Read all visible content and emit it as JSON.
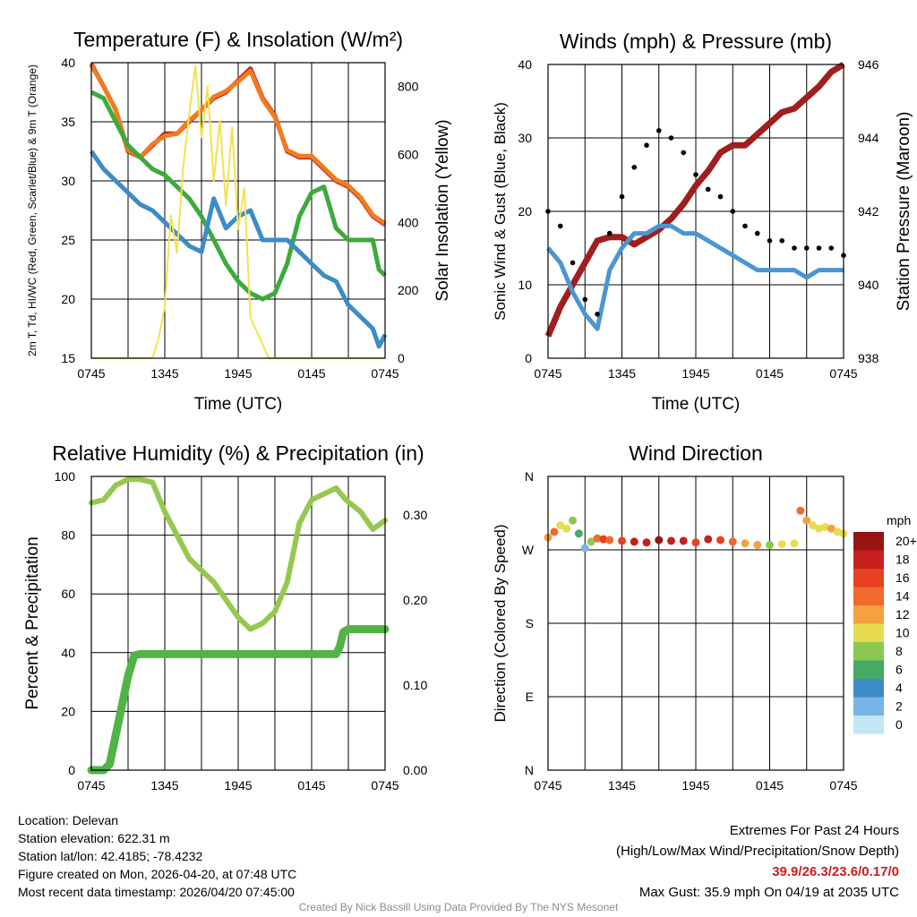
{
  "chart_data": [
    {
      "type": "line",
      "title": "Temperature (F) & Insolation (W/m²)",
      "xlabel": "Time (UTC)",
      "ylabel": "2m T, Td, HI/WC (Red, Green, Scarlet/Blue) & 9m T (Orange)",
      "y2label": "Solar Insolation (Yellow)",
      "x_ticks": [
        "0745",
        "1345",
        "1945",
        "0145",
        "0745"
      ],
      "ylim": [
        15,
        40
      ],
      "y_ticks": [
        15,
        20,
        25,
        30,
        35,
        40
      ],
      "y2lim": [
        0,
        870
      ],
      "y2_ticks": [
        0,
        200,
        400,
        600,
        800
      ],
      "x_hours": [
        0,
        24
      ],
      "series": [
        {
          "name": "2m Temperature",
          "color": "#c81e1e",
          "axis": "left",
          "x": [
            0,
            1,
            2,
            3,
            4,
            5,
            6,
            7,
            8,
            9,
            10,
            11,
            12,
            13,
            14,
            15,
            16,
            17,
            18,
            19,
            20,
            21,
            22,
            23,
            24
          ],
          "values": [
            39.9,
            38,
            36,
            32.5,
            32,
            33,
            34,
            34,
            35,
            36,
            37,
            37.5,
            38.5,
            39.5,
            37,
            35.5,
            32.5,
            32,
            32,
            31,
            30,
            29.5,
            28.5,
            27,
            26.3
          ]
        },
        {
          "name": "9m Temperature",
          "color": "#f07c1e",
          "axis": "left",
          "x": [
            0,
            1,
            2,
            3,
            4,
            5,
            6,
            7,
            8,
            9,
            10,
            11,
            12,
            13,
            14,
            15,
            16,
            17,
            18,
            19,
            20,
            21,
            22,
            23,
            24
          ],
          "values": [
            39.8,
            38,
            36,
            32.6,
            32,
            33.1,
            33.8,
            34,
            35.1,
            36,
            37.1,
            37.6,
            38.4,
            39.3,
            36.9,
            35.4,
            32.6,
            32.1,
            32.1,
            31.1,
            30.1,
            29.6,
            28.6,
            27.1,
            26.4
          ]
        },
        {
          "name": "Dew Point",
          "color": "#3caa3c",
          "axis": "left",
          "x": [
            0,
            1,
            2,
            3,
            4,
            5,
            6,
            7,
            8,
            9,
            10,
            11,
            12,
            13,
            14,
            15,
            16,
            17,
            18,
            19,
            20,
            21,
            22,
            23,
            23.5,
            24
          ],
          "values": [
            37.5,
            37,
            35,
            33,
            32,
            31,
            30.5,
            29.5,
            28.5,
            27,
            25,
            23,
            21.5,
            20.5,
            20,
            20.5,
            23,
            27,
            29,
            29.5,
            26,
            25,
            25,
            25,
            22.5,
            22
          ]
        },
        {
          "name": "Wind Chill",
          "color": "#3c8cc8",
          "axis": "left",
          "x": [
            0,
            1,
            2,
            3,
            4,
            5,
            6,
            7,
            8,
            9,
            10,
            11,
            12,
            13,
            14,
            15,
            16,
            17,
            18,
            19,
            20,
            21,
            22,
            23,
            23.5,
            24
          ],
          "values": [
            32.5,
            31,
            30,
            29,
            28,
            27.5,
            26.5,
            25.5,
            24.5,
            24,
            28.5,
            26,
            27,
            27.5,
            25,
            25,
            25,
            24,
            23,
            22,
            21.5,
            19.5,
            18.5,
            17.5,
            16,
            17
          ]
        },
        {
          "name": "Solar Insolation",
          "color": "#f5e150",
          "axis": "right",
          "x": [
            0,
            5,
            5.5,
            6,
            6.5,
            7,
            7.5,
            8,
            8.5,
            9,
            9.5,
            10,
            10.5,
            11,
            11.5,
            12,
            12.5,
            13,
            14,
            14.5,
            24
          ],
          "values": [
            0,
            0,
            60,
            150,
            420,
            310,
            560,
            720,
            860,
            650,
            800,
            520,
            700,
            450,
            680,
            380,
            500,
            120,
            40,
            0,
            0
          ]
        }
      ]
    },
    {
      "type": "line",
      "title": "Winds (mph) & Pressure (mb)",
      "xlabel": "Time (UTC)",
      "ylabel": "Sonic Wind & Gust (Blue, Black)",
      "y2label": "Station Pressure (Maroon)",
      "x_ticks": [
        "0745",
        "1345",
        "1945",
        "0145",
        "0745"
      ],
      "ylim": [
        0,
        40
      ],
      "y_ticks": [
        0,
        10,
        20,
        30,
        40
      ],
      "y2lim": [
        938,
        946
      ],
      "y2_ticks": [
        938,
        940,
        942,
        944,
        946
      ],
      "x_hours": [
        0,
        24
      ],
      "series": [
        {
          "name": "Station Pressure",
          "color": "#a01e1e",
          "axis": "right",
          "x": [
            0,
            1,
            2,
            3,
            4,
            5,
            6,
            7,
            8,
            9,
            10,
            11,
            12,
            13,
            14,
            15,
            16,
            17,
            18,
            19,
            20,
            21,
            22,
            23,
            24
          ],
          "values": [
            938.6,
            939.4,
            940,
            940.6,
            941.2,
            941.3,
            941.3,
            941.1,
            941.3,
            941.5,
            941.8,
            942.2,
            942.7,
            943.1,
            943.6,
            943.8,
            943.8,
            944.1,
            944.4,
            944.7,
            944.8,
            945.1,
            945.4,
            945.8,
            946
          ]
        },
        {
          "name": "Sonic Wind",
          "color": "#4a96d2",
          "axis": "left",
          "x": [
            0,
            1,
            2,
            3,
            4,
            5,
            6,
            7,
            8,
            9,
            10,
            11,
            12,
            13,
            14,
            15,
            16,
            17,
            18,
            19,
            20,
            21,
            22,
            23,
            24
          ],
          "values": [
            15,
            13,
            9,
            6,
            4,
            12,
            15,
            17,
            17,
            18,
            18,
            17,
            17,
            16,
            15,
            14,
            13,
            12,
            12,
            12,
            12,
            11,
            12,
            12,
            12
          ]
        },
        {
          "name": "Gust",
          "color": "#000000",
          "axis": "left",
          "style": "markers",
          "x": [
            0,
            1,
            2,
            3,
            4,
            5,
            6,
            7,
            8,
            9,
            10,
            11,
            12,
            13,
            14,
            15,
            16,
            17,
            18,
            19,
            20,
            21,
            22,
            23,
            24
          ],
          "values": [
            20,
            18,
            13,
            8,
            6,
            17,
            22,
            26,
            29,
            31,
            30,
            28,
            25,
            23,
            22,
            20,
            18,
            17,
            16,
            16,
            15,
            15,
            15,
            15,
            14
          ]
        }
      ]
    },
    {
      "type": "line",
      "title": "Relative Humidity (%) & Precipitation (in)",
      "xlabel": "",
      "ylabel": "Percent & Precipitation",
      "x_ticks": [
        "0745",
        "1345",
        "1945",
        "0145",
        "0745"
      ],
      "ylim": [
        0,
        100
      ],
      "y_ticks": [
        0,
        20,
        40,
        60,
        80,
        100
      ],
      "y2lim": [
        0,
        0.345
      ],
      "y2_ticks": [
        "0.00",
        "0.10",
        "0.20",
        "0.30"
      ],
      "y2_tick_values": [
        0,
        0.1,
        0.2,
        0.3
      ],
      "x_hours": [
        0,
        24
      ],
      "series": [
        {
          "name": "Relative Humidity",
          "color": "#96c850",
          "axis": "left",
          "x": [
            0,
            1,
            2,
            3,
            4,
            5,
            6,
            7,
            8,
            9,
            10,
            11,
            12,
            13,
            14,
            15,
            16,
            17,
            18,
            19,
            20,
            20.8,
            22,
            23,
            24
          ],
          "values": [
            91,
            92,
            97,
            99,
            99,
            98,
            88,
            80,
            72,
            68,
            64,
            58,
            52,
            48,
            50,
            54,
            64,
            84,
            92,
            94,
            96,
            92,
            88,
            82,
            85
          ]
        },
        {
          "name": "Precipitation",
          "color": "#50b446",
          "axis": "left",
          "x": [
            0,
            1,
            1.5,
            2,
            2.5,
            3,
            3.5,
            4,
            5,
            10,
            15,
            20,
            20.3,
            20.6,
            21,
            22,
            24
          ],
          "values": [
            0,
            0,
            2,
            12,
            22,
            32,
            39,
            39.5,
            39.5,
            39.5,
            39.5,
            39.5,
            42,
            47,
            48,
            48,
            48
          ]
        }
      ]
    },
    {
      "type": "scatter",
      "title": "Wind Direction",
      "xlabel": "",
      "ylabel": "Direction (Colored By Speed)",
      "x_ticks": [
        "0745",
        "1345",
        "1945",
        "0145",
        "0745"
      ],
      "y_ticks": [
        "N",
        "E",
        "S",
        "W",
        "N"
      ],
      "ylim": [
        0,
        360
      ],
      "x_hours": [
        0,
        24
      ],
      "legend": {
        "title": "mph",
        "labels": [
          "20+",
          "18",
          "16",
          "14",
          "12",
          "10",
          "8",
          "6",
          "4",
          "2",
          "0"
        ],
        "colors": [
          "#961414",
          "#c81e1e",
          "#e64123",
          "#f0692d",
          "#f5a041",
          "#e6dc50",
          "#8cc850",
          "#46aa64",
          "#3c8cc8",
          "#78b4e6",
          "#c3e6f5"
        ]
      },
      "points": {
        "x": [
          0,
          0.5,
          1,
          1.5,
          2,
          2.5,
          3,
          3.5,
          4,
          4.5,
          5,
          6,
          7,
          8,
          9,
          10,
          11,
          12,
          13,
          14,
          15,
          16,
          17,
          18,
          19,
          20,
          20.5,
          21,
          21.5,
          22,
          22.5,
          23,
          23.5,
          24
        ],
        "direction": [
          285,
          292,
          300,
          296,
          306,
          290,
          272,
          280,
          284,
          283,
          282,
          281,
          280,
          279,
          282,
          281,
          281,
          279,
          283,
          282,
          280,
          278,
          276,
          276,
          277,
          278,
          318,
          306,
          300,
          296,
          298,
          296,
          292,
          290
        ],
        "speed": [
          12,
          14,
          10,
          11,
          8,
          6,
          3,
          8,
          14,
          16,
          15,
          17,
          18,
          19,
          20,
          18,
          19,
          17,
          18,
          16,
          15,
          13,
          12,
          8,
          10,
          11,
          14,
          12,
          11,
          10,
          10,
          12,
          11,
          10
        ]
      }
    }
  ],
  "footer": {
    "location": "Location: Delevan",
    "elevation": "Station elevation: 622.31 m",
    "latlon": "Station lat/lon: 42.4185; -78.4232",
    "created": "Figure created on Mon, 2026-04-20, at 07:48 UTC",
    "recent": "Most recent data timestamp: 2026/04/20 07:45:00",
    "extremes_title": "Extremes For Past 24 Hours",
    "extremes_desc": "(High/Low/Max Wind/Precipitation/Snow Depth)",
    "extremes_values": "39.9/26.3/23.6/0.17/0",
    "max_gust": "Max Gust: 35.9 mph On 04/19 at 2035 UTC",
    "credit": "Created By Nick Bassill Using Data Provided By The NYS Mesonet"
  }
}
